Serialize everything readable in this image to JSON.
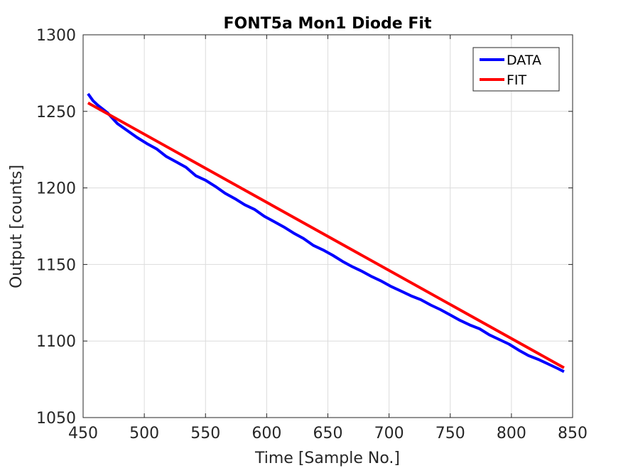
{
  "chart_data": {
    "type": "line",
    "title": "FONT5a Mon1 Diode Fit",
    "xlabel": "Time [Sample No.]",
    "ylabel": "Output [counts]",
    "xlim": [
      450,
      850
    ],
    "ylim": [
      1050,
      1300
    ],
    "xticks": [
      "450",
      "500",
      "550",
      "600",
      "650",
      "700",
      "750",
      "800",
      "850"
    ],
    "yticks": [
      "1050",
      "1100",
      "1150",
      "1200",
      "1250",
      "1300"
    ],
    "grid": true,
    "legend_position": "top-right",
    "series": [
      {
        "name": "DATA",
        "color": "#0000ff",
        "x": [
          454,
          458,
          462,
          466,
          470,
          478,
          486,
          494,
          502,
          510,
          518,
          526,
          534,
          542,
          550,
          558,
          566,
          574,
          582,
          590,
          598,
          606,
          614,
          622,
          630,
          638,
          646,
          654,
          662,
          670,
          678,
          686,
          694,
          702,
          710,
          718,
          726,
          734,
          742,
          750,
          758,
          766,
          774,
          782,
          790,
          798,
          806,
          814,
          822,
          830,
          838,
          843
        ],
        "y": [
          1261.5,
          1257,
          1254,
          1251.5,
          1249,
          1242,
          1237.5,
          1233,
          1229,
          1225.5,
          1220.5,
          1217,
          1213.5,
          1208,
          1205,
          1201,
          1196.5,
          1193,
          1189,
          1186,
          1181.5,
          1178,
          1174.5,
          1170.5,
          1167,
          1162.5,
          1159.5,
          1156,
          1152,
          1148.5,
          1145.5,
          1142,
          1139,
          1135.5,
          1132.5,
          1129.5,
          1127,
          1123.5,
          1120.5,
          1117,
          1113.5,
          1110.5,
          1108,
          1104,
          1101,
          1098,
          1094,
          1090.5,
          1088,
          1085,
          1082,
          1080
        ]
      },
      {
        "name": "FIT",
        "color": "#ff0000",
        "x": [
          454,
          843
        ],
        "y": [
          1255.5,
          1082.5
        ]
      }
    ]
  }
}
